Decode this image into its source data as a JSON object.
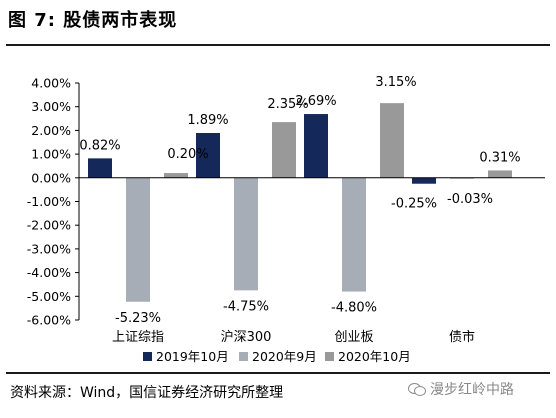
{
  "figure": {
    "title": "图 7:  股债两市表现",
    "source": "资料来源：Wind，国信证券经济研究所整理",
    "watermark": "漫步红岭中路"
  },
  "colors": {
    "series_2019_10": "#14285a",
    "series_2020_09": "#a7adb6",
    "series_2020_10": "#999999"
  },
  "chart_data": {
    "type": "bar",
    "title": "",
    "xlabel": "",
    "ylabel": "",
    "categories": [
      "上证综指",
      "沪深300",
      "创业板",
      "债市"
    ],
    "series": [
      {
        "name": "2019年10月",
        "values": [
          0.82,
          1.89,
          2.69,
          -0.25
        ]
      },
      {
        "name": "2020年9月",
        "values": [
          -5.23,
          -4.75,
          -4.8,
          -0.03
        ]
      },
      {
        "name": "2020年10月",
        "values": [
          0.2,
          2.35,
          3.15,
          0.31
        ]
      }
    ],
    "ylim": [
      -6,
      4
    ],
    "yticks": [
      4,
      3,
      2,
      1,
      0,
      -1,
      -2,
      -3,
      -4,
      -5,
      -6
    ],
    "ytick_labels": [
      "4.00%",
      "3.00%",
      "2.00%",
      "1.00%",
      "0.00%",
      "-1.00%",
      "-2.00%",
      "-3.00%",
      "-4.00%",
      "-5.00%",
      "-6.00%"
    ],
    "data_labels": [
      [
        "0.82%",
        "1.89%",
        "2.69%",
        "-0.25%"
      ],
      [
        "-5.23%",
        "-4.75%",
        "-4.80%",
        "-0.03%"
      ],
      [
        "0.20%",
        "2.35%",
        "3.15%",
        "0.31%"
      ]
    ],
    "legend_position": "bottom",
    "grid": false
  }
}
